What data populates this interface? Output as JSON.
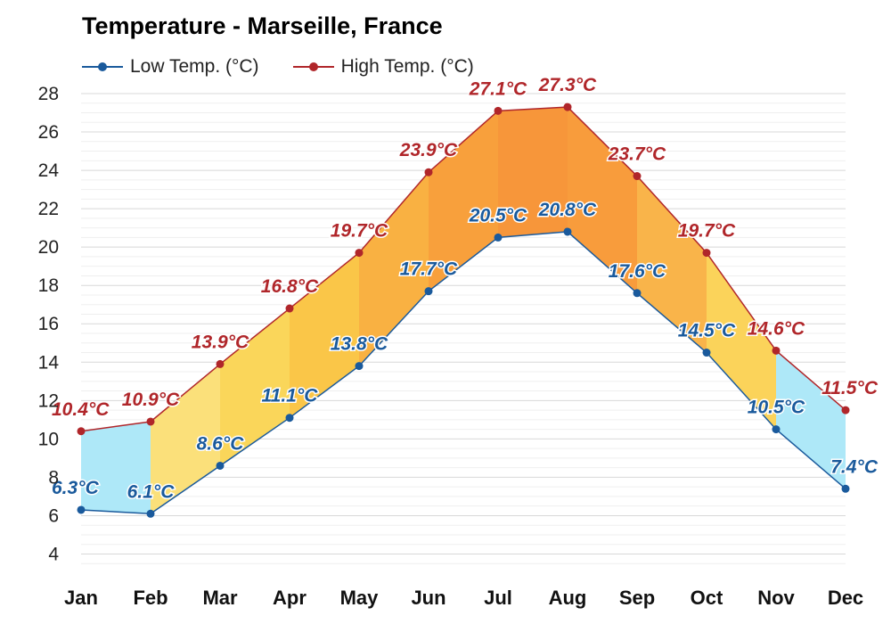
{
  "chart_data": {
    "type": "line",
    "title": "Temperature - Marseille, France",
    "categories": [
      "Jan",
      "Feb",
      "Mar",
      "Apr",
      "May",
      "Jun",
      "Jul",
      "Aug",
      "Sep",
      "Oct",
      "Nov",
      "Dec"
    ],
    "series": [
      {
        "name": "Low Temp. (°C)",
        "color": "#1a5a9c",
        "values": [
          6.3,
          6.1,
          8.6,
          11.1,
          13.8,
          17.7,
          20.5,
          20.8,
          17.6,
          14.5,
          10.5,
          7.4
        ],
        "labels": [
          "6.3°C",
          "6.1°C",
          "8.6°C",
          "11.1°C",
          "13.8°C",
          "17.7°C",
          "20.5°C",
          "20.8°C",
          "17.6°C",
          "14.5°C",
          "10.5°C",
          "7.4°C"
        ]
      },
      {
        "name": "High Temp. (°C)",
        "color": "#b0262a",
        "values": [
          10.4,
          10.9,
          13.9,
          16.8,
          19.7,
          23.9,
          27.1,
          27.3,
          23.7,
          19.7,
          14.6,
          11.5
        ],
        "labels": [
          "10.4°C",
          "10.9°C",
          "13.9°C",
          "16.8°C",
          "19.7°C",
          "23.9°C",
          "27.1°C",
          "27.3°C",
          "23.7°C",
          "19.7°C",
          "14.6°C",
          "11.5°C"
        ]
      }
    ],
    "band_fill_colors": [
      "#aee8f8",
      "#fbe07a",
      "#fad65a",
      "#fac648",
      "#f9b142",
      "#f8a03c",
      "#f7963a",
      "#f89c3c",
      "#f9b44a",
      "#fbd35a",
      "#aee8f8",
      "#aee8f8"
    ],
    "ylim": [
      3,
      28
    ],
    "yticks": [
      4,
      6,
      8,
      10,
      12,
      14,
      16,
      18,
      20,
      22,
      24,
      26,
      28
    ],
    "grid": true,
    "legend_position": "top-left"
  }
}
